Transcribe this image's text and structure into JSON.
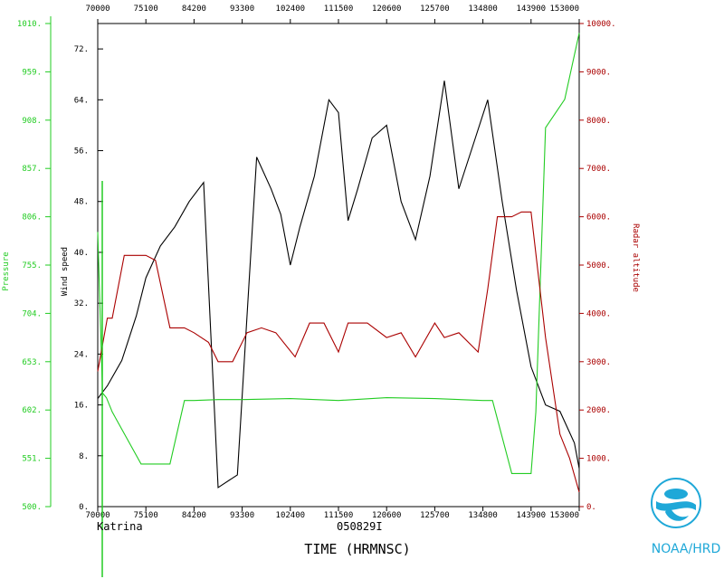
{
  "chart_data": {
    "type": "line",
    "xlabel": "TIME (HRMNSC)",
    "storm_name": "Katrina",
    "flight_id": "050829I",
    "logo_text": "NOAA/HRD",
    "x_ticks": [
      "70000",
      "75100",
      "84200",
      "93300",
      "102400",
      "111500",
      "120600",
      "125700",
      "134800",
      "143900",
      "153000"
    ],
    "xlim": [
      0,
      10
    ],
    "axes": {
      "wind": {
        "label": "Wind speed",
        "color": "#000000",
        "ylim": [
          0,
          76
        ],
        "ticks": [
          "0.",
          "8.",
          "16.",
          "24.",
          "32.",
          "40.",
          "48.",
          "56.",
          "64.",
          "72."
        ],
        "tick_values": [
          0,
          8,
          16,
          24,
          32,
          40,
          48,
          56,
          64,
          72
        ]
      },
      "pressure": {
        "label": "Pressure",
        "color": "#22cc22",
        "ylim": [
          500,
          1010
        ],
        "ticks": [
          "500.",
          "551.",
          "602.",
          "653.",
          "704.",
          "755.",
          "806.",
          "857.",
          "908.",
          "959.",
          "1010."
        ],
        "tick_values": [
          500,
          551,
          602,
          653,
          704,
          755,
          806,
          857,
          908,
          959,
          1010
        ]
      },
      "altitude": {
        "label": "Radar altitude",
        "color": "#aa0000",
        "ylim": [
          0,
          10000
        ],
        "ticks": [
          "0.",
          "1000.",
          "2000.",
          "3000.",
          "4000.",
          "5000.",
          "6000.",
          "7000.",
          "8000.",
          "9000.",
          "10000."
        ],
        "tick_values": [
          0,
          1000,
          2000,
          3000,
          4000,
          5000,
          6000,
          7000,
          8000,
          9000,
          10000
        ]
      }
    },
    "series": [
      {
        "name": "Wind speed",
        "axis": "wind",
        "color": "#000000",
        "x": [
          0,
          0.2,
          0.5,
          0.8,
          1.0,
          1.3,
          1.6,
          1.9,
          2.2,
          2.5,
          2.9,
          3.3,
          3.6,
          3.8,
          4.0,
          4.2,
          4.5,
          4.8,
          5.0,
          5.2,
          5.4,
          5.7,
          6.0,
          6.3,
          6.6,
          6.9,
          7.2,
          7.5,
          7.8,
          8.1,
          8.4,
          8.7,
          9.0,
          9.3,
          9.6,
          9.9,
          10
        ],
        "y": [
          17,
          19,
          23,
          30,
          36,
          41,
          44,
          48,
          51,
          3,
          5,
          55,
          50,
          46,
          38,
          44,
          52,
          64,
          62,
          45,
          50,
          58,
          60,
          48,
          42,
          52,
          67,
          50,
          57,
          64,
          48,
          34,
          22,
          16,
          15,
          10,
          6
        ]
      },
      {
        "name": "Pressure",
        "axis": "pressure",
        "color": "#22cc22",
        "x": [
          0,
          0.1,
          0.18,
          0.3,
          0.9,
          1.1,
          1.5,
          1.8,
          2.0,
          2.5,
          3.0,
          4.0,
          5.0,
          6.0,
          7.0,
          8.0,
          8.2,
          8.6,
          8.8,
          9.0,
          9.1,
          9.3,
          9.7,
          10
        ],
        "y": [
          790,
          620,
          615,
          600,
          545,
          545,
          545,
          612,
          612,
          613,
          613,
          614,
          612,
          615,
          614,
          612,
          612,
          535,
          535,
          535,
          600,
          900,
          930,
          1000
        ]
      },
      {
        "name": "Radar altitude",
        "axis": "altitude",
        "color": "#aa0000",
        "x": [
          0,
          0.2,
          0.3,
          0.55,
          0.7,
          0.8,
          1.0,
          1.2,
          1.5,
          1.8,
          2.0,
          2.3,
          2.5,
          2.8,
          3.1,
          3.4,
          3.7,
          4.1,
          4.4,
          4.7,
          5.0,
          5.2,
          5.6,
          6.0,
          6.3,
          6.6,
          7.0,
          7.2,
          7.5,
          7.9,
          8.1,
          8.3,
          8.6,
          8.8,
          9.0,
          9.3,
          9.6,
          9.8,
          10
        ],
        "y": [
          2800,
          3900,
          3900,
          5200,
          5200,
          5200,
          5200,
          5100,
          3700,
          3700,
          3600,
          3400,
          3000,
          3000,
          3600,
          3700,
          3600,
          3100,
          3800,
          3800,
          3200,
          3800,
          3800,
          3500,
          3600,
          3100,
          3800,
          3500,
          3600,
          3200,
          4500,
          6000,
          6000,
          6100,
          6100,
          3500,
          1500,
          1000,
          300
        ]
      }
    ]
  }
}
